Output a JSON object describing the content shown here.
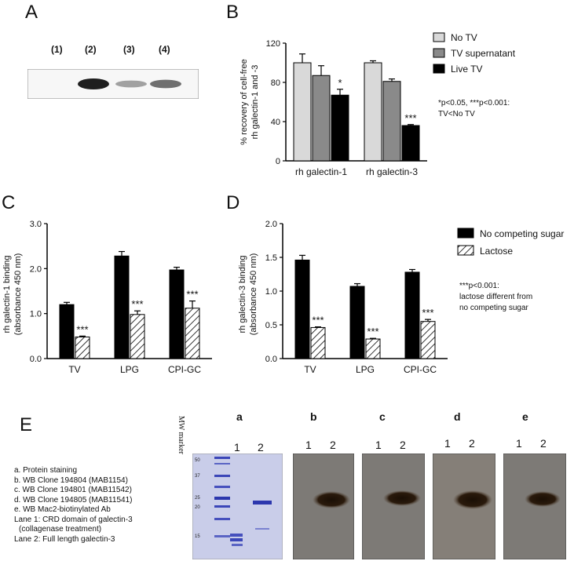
{
  "panelA": {
    "label": "A",
    "lanes": [
      "(1)",
      "(2)",
      "(3)",
      "(4)"
    ],
    "band_intensity": [
      0.05,
      1.0,
      0.35,
      0.6
    ]
  },
  "panelB": {
    "label": "B",
    "ylabel_line1": "% recovery of cell-free",
    "ylabel_line2": "rh galectin-1 and -3",
    "yticks": [
      "0",
      "40",
      "80",
      "120"
    ],
    "legend": [
      "No TV",
      "TV supernatant",
      "Live TV"
    ],
    "note_line1": "*p<0.05, ***p<0.001:",
    "note_line2": "TV<No TV",
    "star1": "*",
    "star2": "***",
    "colors": [
      "#d9d9d9",
      "#8a8a8a",
      "#000000"
    ]
  },
  "panelC": {
    "label": "C",
    "ylabel_line1": "rh galectin-1 binding",
    "ylabel_line2": "(absorbance 450 nm)",
    "yticks": [
      "0.0",
      "1.0",
      "2.0",
      "3.0"
    ],
    "stars": [
      "***",
      "***",
      "***"
    ]
  },
  "panelD": {
    "label": "D",
    "ylabel_line1": "rh galectin-3 binding",
    "ylabel_line2": "(absorbance 450 nm)",
    "yticks": [
      "0.0",
      "0.5",
      "1.0",
      "1.5",
      "2.0"
    ],
    "stars": [
      "***",
      "***",
      "***"
    ],
    "legend": [
      "No competing sugar",
      "Lactose"
    ],
    "note_line1": "***p<0.001:",
    "note_line2": "lactose different from",
    "note_line3": "no competing sugar"
  },
  "panelE": {
    "label": "E",
    "mw_marker": "MW marker",
    "mw_ticks": [
      "50",
      "37",
      "25",
      "20",
      "15"
    ],
    "blot_labels": [
      "a",
      "b",
      "c",
      "d",
      "e"
    ],
    "lane_labels": [
      "1",
      "2"
    ],
    "legend_items": [
      "a.   Protein staining",
      "b.   WB Clone 194804 (MAB1154)",
      "c.   WB Clone 194801 (MAB11542)",
      "d.   WB Clone 194805 (MAB11541)",
      "e.   WB Mac2-biotinylated Ab",
      " Lane 1: CRD domain of galectin-3",
      "(collagenase treatment)",
      "Lane 2: Full length galectin-3"
    ]
  },
  "chart_data": [
    {
      "type": "bar",
      "panel": "B",
      "categories": [
        "rh galectin-1",
        "rh galectin-3"
      ],
      "series": [
        {
          "name": "No TV",
          "values": [
            100,
            100
          ],
          "errors": [
            9,
            2
          ]
        },
        {
          "name": "TV supernatant",
          "values": [
            87,
            81
          ],
          "errors": [
            10,
            2.5
          ]
        },
        {
          "name": "Live TV",
          "values": [
            67,
            36
          ],
          "errors": [
            6,
            1
          ]
        }
      ],
      "ylabel": "% recovery of cell-free rh galectin-1 and -3",
      "ylim": [
        0,
        120
      ]
    },
    {
      "type": "bar",
      "panel": "C",
      "categories": [
        "TV",
        "LPG",
        "CPI-GC"
      ],
      "series": [
        {
          "name": "No competing sugar",
          "values": [
            1.2,
            2.28,
            1.97
          ],
          "errors": [
            0.05,
            0.1,
            0.06
          ]
        },
        {
          "name": "Lactose",
          "values": [
            0.48,
            0.98,
            1.12
          ],
          "errors": [
            0.02,
            0.08,
            0.16
          ]
        }
      ],
      "ylabel": "rh galectin-1 binding (absorbance 450 nm)",
      "ylim": [
        0,
        3.0
      ]
    },
    {
      "type": "bar",
      "panel": "D",
      "categories": [
        "TV",
        "LPG",
        "CPI-GC"
      ],
      "series": [
        {
          "name": "No competing sugar",
          "values": [
            1.46,
            1.07,
            1.28
          ],
          "errors": [
            0.07,
            0.04,
            0.04
          ]
        },
        {
          "name": "Lactose",
          "values": [
            0.46,
            0.29,
            0.55
          ],
          "errors": [
            0.01,
            0.01,
            0.03
          ]
        }
      ],
      "ylabel": "rh galectin-3 binding (absorbance 450 nm)",
      "ylim": [
        0,
        2.0
      ]
    }
  ]
}
